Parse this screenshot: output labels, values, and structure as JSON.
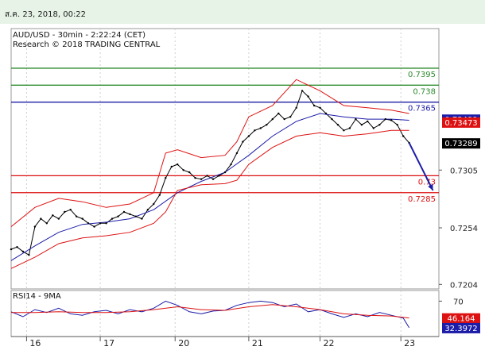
{
  "header": {
    "timestamp": "ส.ค. 23, 2018, 00:22"
  },
  "chart_data": [
    {
      "type": "line",
      "title": "AUD/USD - 30min - 2:22:24 (CET)",
      "subtitle": "Research © 2018 TRADING CENTRAL",
      "ylim": [
        0.72,
        0.743
      ],
      "yticks": [
        {
          "value": 0.7204,
          "label": "0.7204"
        },
        {
          "value": 0.7254,
          "label": "0.7254"
        },
        {
          "value": 0.7305,
          "label": "0.7305"
        }
      ],
      "xlabels": [
        "16",
        "17",
        "20",
        "21",
        "22",
        "23"
      ],
      "levels": [
        {
          "value": 0.7395,
          "label": "0.7395",
          "color": "#2e8b2e"
        },
        {
          "value": 0.738,
          "label": "0.738",
          "color": "#2e8b2e"
        },
        {
          "value": 0.7365,
          "label": "0.7365",
          "color": "#1c1ca8"
        },
        {
          "value": 0.73,
          "label": "0.73",
          "color": "#dd1111"
        },
        {
          "value": 0.7285,
          "label": "0.7285",
          "color": "#dd1111"
        }
      ],
      "price_tags": [
        {
          "value": 0.73499,
          "label": "0.73499",
          "color": "#1c1ca8"
        },
        {
          "value": 0.73473,
          "label": "0.73473",
          "color": "#dd1111"
        },
        {
          "value": 0.73289,
          "label": "0.73289",
          "color": "#000000"
        }
      ],
      "series": [
        {
          "name": "",
          "color": "#000000",
          "values": [
            {
              "x": 0,
              "y": 0.7235
            },
            {
              "x": 0.5,
              "y": 0.7237
            },
            {
              "x": 1,
              "y": 0.7233
            },
            {
              "x": 1.5,
              "y": 0.723
            },
            {
              "x": 2,
              "y": 0.7255
            },
            {
              "x": 2.5,
              "y": 0.7262
            },
            {
              "x": 3,
              "y": 0.7258
            },
            {
              "x": 3.5,
              "y": 0.7265
            },
            {
              "x": 4,
              "y": 0.7262
            },
            {
              "x": 4.5,
              "y": 0.7268
            },
            {
              "x": 5,
              "y": 0.727
            },
            {
              "x": 5.5,
              "y": 0.7264
            },
            {
              "x": 6,
              "y": 0.7262
            },
            {
              "x": 6.5,
              "y": 0.7258
            },
            {
              "x": 7,
              "y": 0.7255
            },
            {
              "x": 7.5,
              "y": 0.7258
            },
            {
              "x": 8,
              "y": 0.7258
            },
            {
              "x": 8.5,
              "y": 0.7262
            },
            {
              "x": 9,
              "y": 0.7264
            },
            {
              "x": 9.5,
              "y": 0.7268
            },
            {
              "x": 10,
              "y": 0.7266
            },
            {
              "x": 10.5,
              "y": 0.7264
            },
            {
              "x": 11,
              "y": 0.7262
            },
            {
              "x": 11.5,
              "y": 0.727
            },
            {
              "x": 12,
              "y": 0.7275
            },
            {
              "x": 12.5,
              "y": 0.7283
            },
            {
              "x": 13,
              "y": 0.7298
            },
            {
              "x": 13.5,
              "y": 0.7308
            },
            {
              "x": 14,
              "y": 0.731
            },
            {
              "x": 14.5,
              "y": 0.7305
            },
            {
              "x": 15,
              "y": 0.7303
            },
            {
              "x": 15.5,
              "y": 0.7298
            },
            {
              "x": 16,
              "y": 0.7297
            },
            {
              "x": 16.5,
              "y": 0.73
            },
            {
              "x": 17,
              "y": 0.7297
            },
            {
              "x": 17.5,
              "y": 0.73
            },
            {
              "x": 18,
              "y": 0.7303
            },
            {
              "x": 18.5,
              "y": 0.731
            },
            {
              "x": 19,
              "y": 0.732
            },
            {
              "x": 19.5,
              "y": 0.733
            },
            {
              "x": 20,
              "y": 0.7335
            },
            {
              "x": 20.5,
              "y": 0.734
            },
            {
              "x": 21,
              "y": 0.7342
            },
            {
              "x": 21.5,
              "y": 0.7345
            },
            {
              "x": 22,
              "y": 0.735
            },
            {
              "x": 22.5,
              "y": 0.7355
            },
            {
              "x": 23,
              "y": 0.735
            },
            {
              "x": 23.5,
              "y": 0.7352
            },
            {
              "x": 24,
              "y": 0.736
            },
            {
              "x": 24.5,
              "y": 0.7375
            },
            {
              "x": 25,
              "y": 0.737
            },
            {
              "x": 25.5,
              "y": 0.7362
            },
            {
              "x": 26,
              "y": 0.736
            },
            {
              "x": 26.5,
              "y": 0.7355
            },
            {
              "x": 27,
              "y": 0.735
            },
            {
              "x": 27.5,
              "y": 0.7345
            },
            {
              "x": 28,
              "y": 0.734
            },
            {
              "x": 28.5,
              "y": 0.7342
            },
            {
              "x": 29,
              "y": 0.735
            },
            {
              "x": 29.5,
              "y": 0.7345
            },
            {
              "x": 30,
              "y": 0.7348
            },
            {
              "x": 30.5,
              "y": 0.7342
            },
            {
              "x": 31,
              "y": 0.7345
            },
            {
              "x": 31.5,
              "y": 0.735
            },
            {
              "x": 32,
              "y": 0.7349
            },
            {
              "x": 32.5,
              "y": 0.7345
            },
            {
              "x": 33,
              "y": 0.7335
            },
            {
              "x": 33.5,
              "y": 0.7329
            }
          ]
        },
        {
          "name": "",
          "color": "#1c1ca8",
          "values": [
            {
              "x": 0,
              "y": 0.7225
            },
            {
              "x": 2,
              "y": 0.7238
            },
            {
              "x": 4,
              "y": 0.725
            },
            {
              "x": 6,
              "y": 0.7257
            },
            {
              "x": 8,
              "y": 0.7259
            },
            {
              "x": 10,
              "y": 0.7262
            },
            {
              "x": 12,
              "y": 0.727
            },
            {
              "x": 14,
              "y": 0.7285
            },
            {
              "x": 16,
              "y": 0.7295
            },
            {
              "x": 18,
              "y": 0.7303
            },
            {
              "x": 20,
              "y": 0.7318
            },
            {
              "x": 22,
              "y": 0.7335
            },
            {
              "x": 24,
              "y": 0.7348
            },
            {
              "x": 26,
              "y": 0.7355
            },
            {
              "x": 28,
              "y": 0.7352
            },
            {
              "x": 30,
              "y": 0.735
            },
            {
              "x": 32,
              "y": 0.735
            },
            {
              "x": 33.5,
              "y": 0.7349
            }
          ]
        },
        {
          "name": "",
          "color": "#dd1111",
          "values": [
            {
              "x": 0,
              "y": 0.7255
            },
            {
              "x": 2,
              "y": 0.7272
            },
            {
              "x": 4,
              "y": 0.728
            },
            {
              "x": 6,
              "y": 0.7277
            },
            {
              "x": 8,
              "y": 0.7272
            },
            {
              "x": 10,
              "y": 0.7275
            },
            {
              "x": 12,
              "y": 0.7285
            },
            {
              "x": 13,
              "y": 0.732
            },
            {
              "x": 14,
              "y": 0.7323
            },
            {
              "x": 16,
              "y": 0.7316
            },
            {
              "x": 18,
              "y": 0.7318
            },
            {
              "x": 19,
              "y": 0.733
            },
            {
              "x": 20,
              "y": 0.7352
            },
            {
              "x": 22,
              "y": 0.7362
            },
            {
              "x": 24,
              "y": 0.7385
            },
            {
              "x": 26,
              "y": 0.7375
            },
            {
              "x": 28,
              "y": 0.7362
            },
            {
              "x": 30,
              "y": 0.736
            },
            {
              "x": 32,
              "y": 0.7358
            },
            {
              "x": 33.5,
              "y": 0.7355
            }
          ]
        },
        {
          "name": "",
          "color": "#dd1111",
          "values": [
            {
              "x": 0,
              "y": 0.7218
            },
            {
              "x": 2,
              "y": 0.7228
            },
            {
              "x": 4,
              "y": 0.724
            },
            {
              "x": 6,
              "y": 0.7245
            },
            {
              "x": 8,
              "y": 0.7247
            },
            {
              "x": 10,
              "y": 0.725
            },
            {
              "x": 12,
              "y": 0.7258
            },
            {
              "x": 13,
              "y": 0.7268
            },
            {
              "x": 14,
              "y": 0.7287
            },
            {
              "x": 16,
              "y": 0.7292
            },
            {
              "x": 18,
              "y": 0.7293
            },
            {
              "x": 19,
              "y": 0.7296
            },
            {
              "x": 20,
              "y": 0.731
            },
            {
              "x": 22,
              "y": 0.7325
            },
            {
              "x": 24,
              "y": 0.7335
            },
            {
              "x": 26,
              "y": 0.7338
            },
            {
              "x": 28,
              "y": 0.7335
            },
            {
              "x": 30,
              "y": 0.7337
            },
            {
              "x": 32,
              "y": 0.734
            },
            {
              "x": 33.5,
              "y": 0.734
            }
          ]
        }
      ],
      "forecast_arrow": {
        "from": {
          "x": 33.5,
          "y": 0.7329
        },
        "to": {
          "x": 35.5,
          "y": 0.7287
        },
        "color": "#1c1ca8"
      }
    },
    {
      "type": "line",
      "title": "RSI14 - 9MA",
      "ylim": [
        20,
        85
      ],
      "yticks": [
        {
          "value": 70,
          "label": "70"
        }
      ],
      "price_tags": [
        {
          "value": 46.164,
          "label": "46.164",
          "color": "#dd1111"
        },
        {
          "value": 32.3972,
          "label": "32.3972",
          "color": "#1c1ca8"
        }
      ],
      "series": [
        {
          "name": "",
          "color": "#1c1ca8",
          "values": [
            {
              "x": 0,
              "y": 55
            },
            {
              "x": 1,
              "y": 48
            },
            {
              "x": 2,
              "y": 58
            },
            {
              "x": 3,
              "y": 54
            },
            {
              "x": 4,
              "y": 60
            },
            {
              "x": 5,
              "y": 52
            },
            {
              "x": 6,
              "y": 50
            },
            {
              "x": 7,
              "y": 55
            },
            {
              "x": 8,
              "y": 57
            },
            {
              "x": 9,
              "y": 52
            },
            {
              "x": 10,
              "y": 58
            },
            {
              "x": 11,
              "y": 55
            },
            {
              "x": 12,
              "y": 60
            },
            {
              "x": 13,
              "y": 70
            },
            {
              "x": 14,
              "y": 64
            },
            {
              "x": 15,
              "y": 55
            },
            {
              "x": 16,
              "y": 52
            },
            {
              "x": 17,
              "y": 56
            },
            {
              "x": 18,
              "y": 57
            },
            {
              "x": 19,
              "y": 64
            },
            {
              "x": 20,
              "y": 68
            },
            {
              "x": 21,
              "y": 70
            },
            {
              "x": 22,
              "y": 68
            },
            {
              "x": 23,
              "y": 62
            },
            {
              "x": 24,
              "y": 66
            },
            {
              "x": 25,
              "y": 55
            },
            {
              "x": 26,
              "y": 58
            },
            {
              "x": 27,
              "y": 52
            },
            {
              "x": 28,
              "y": 47
            },
            {
              "x": 29,
              "y": 52
            },
            {
              "x": 30,
              "y": 48
            },
            {
              "x": 31,
              "y": 54
            },
            {
              "x": 32,
              "y": 50
            },
            {
              "x": 33,
              "y": 46
            },
            {
              "x": 33.5,
              "y": 32.4
            }
          ]
        },
        {
          "name": "",
          "color": "#dd1111",
          "values": [
            {
              "x": 0,
              "y": 54
            },
            {
              "x": 2,
              "y": 54
            },
            {
              "x": 4,
              "y": 55
            },
            {
              "x": 6,
              "y": 54
            },
            {
              "x": 8,
              "y": 54
            },
            {
              "x": 10,
              "y": 55
            },
            {
              "x": 12,
              "y": 58
            },
            {
              "x": 14,
              "y": 62
            },
            {
              "x": 16,
              "y": 58
            },
            {
              "x": 18,
              "y": 57
            },
            {
              "x": 20,
              "y": 62
            },
            {
              "x": 22,
              "y": 65
            },
            {
              "x": 24,
              "y": 62
            },
            {
              "x": 26,
              "y": 58
            },
            {
              "x": 28,
              "y": 52
            },
            {
              "x": 30,
              "y": 50
            },
            {
              "x": 32,
              "y": 49
            },
            {
              "x": 33.5,
              "y": 46.2
            }
          ]
        }
      ]
    }
  ]
}
